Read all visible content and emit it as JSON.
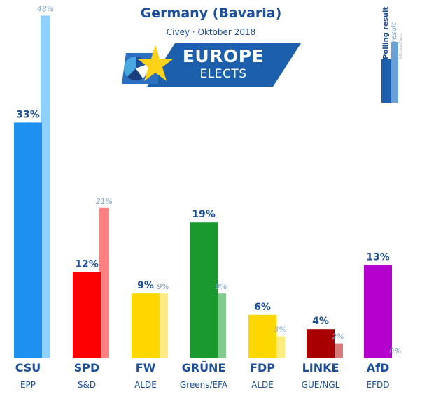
{
  "header": {
    "title": "Germany (Bavaria)",
    "subtitle": "Civey · Oktober 2018"
  },
  "logo": {
    "line1": "EUROPE",
    "line2": "ELECTS"
  },
  "legend": {
    "polling": "Polling result",
    "last": "Last result",
    "source": "@EuropeElects"
  },
  "colors": {
    "text": "#1b4f9c",
    "last_label": "#7fa4cf"
  },
  "chart_data": {
    "type": "bar",
    "title": "Germany (Bavaria)",
    "subtitle": "Civey · Oktober 2018",
    "ylim": [
      0,
      50
    ],
    "categories": [
      "CSU",
      "SPD",
      "FW",
      "GRÜNE",
      "FDP",
      "LINKE",
      "AfD"
    ],
    "groups": [
      "EPP",
      "S&D",
      "ALDE",
      "Greens/EFA",
      "ALDE",
      "GUE/NGL",
      "EFDD"
    ],
    "series": [
      {
        "name": "Polling result",
        "values": [
          33,
          12,
          9,
          19,
          6,
          4,
          13
        ],
        "labels": [
          "33%",
          "12%",
          "9%",
          "19%",
          "6%",
          "4%",
          "13%"
        ],
        "colors": [
          "#1e90f0",
          "#ff0000",
          "#ffd700",
          "#1a9a2e",
          "#ffd700",
          "#a80000",
          "#b300cc"
        ]
      },
      {
        "name": "Last result",
        "values": [
          48,
          21,
          9,
          9,
          3,
          2,
          0
        ],
        "labels": [
          "48%",
          "21%",
          "9%",
          "9%",
          "3%",
          "2%",
          "0%"
        ],
        "colors": [
          "#8fd0ff",
          "#ff8080",
          "#ffec80",
          "#80cc8f",
          "#ffec80",
          "#d97a7a",
          "#e080f0"
        ]
      }
    ]
  }
}
